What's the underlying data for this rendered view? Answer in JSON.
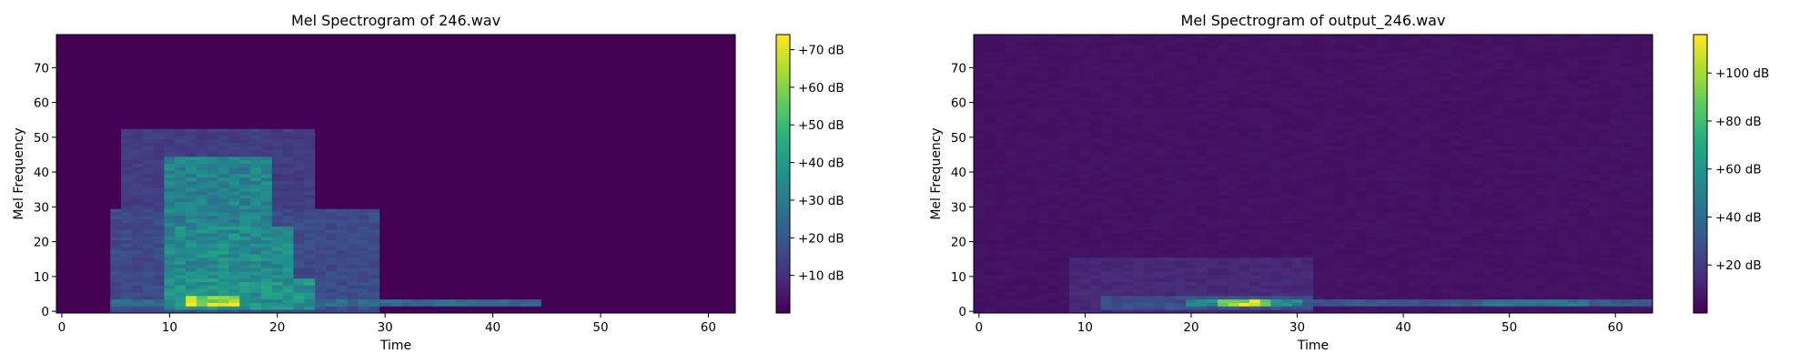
{
  "chart_data": [
    {
      "type": "heatmap",
      "title": "Mel Spectrogram of 246.wav",
      "xlabel": "Time",
      "ylabel": "Mel Frequency",
      "xlim": [
        -0.5,
        62.5
      ],
      "ylim": [
        -0.5,
        79.5
      ],
      "x_ticks": [
        0,
        10,
        20,
        30,
        40,
        50,
        60
      ],
      "y_ticks": [
        0,
        10,
        20,
        30,
        40,
        50,
        60,
        70
      ],
      "n_frames": 63,
      "n_mels": 80,
      "colormap": "viridis",
      "colorbar": {
        "range_db": [
          0,
          74
        ],
        "ticks": [
          10,
          20,
          30,
          40,
          50,
          60,
          70
        ],
        "tick_labels": [
          "+10 dB",
          "+20 dB",
          "+30 dB",
          "+40 dB",
          "+50 dB",
          "+60 dB",
          "+70 dB"
        ]
      },
      "energy_regions": [
        {
          "t": [
            5,
            30
          ],
          "mel": [
            0,
            30
          ],
          "level_db": 18
        },
        {
          "t": [
            6,
            24
          ],
          "mel": [
            8,
            53
          ],
          "level_db": 14
        },
        {
          "t": [
            10,
            20
          ],
          "mel": [
            20,
            45
          ],
          "level_db": 35
        },
        {
          "t": [
            10,
            22
          ],
          "mel": [
            10,
            25
          ],
          "level_db": 38
        },
        {
          "t": [
            10,
            24
          ],
          "mel": [
            1,
            10
          ],
          "level_db": 40
        },
        {
          "t": [
            5,
            45
          ],
          "mel": [
            2,
            4
          ],
          "level_db": 28
        },
        {
          "t": [
            12,
            17
          ],
          "mel": [
            2,
            5
          ],
          "level_db": 72
        }
      ]
    },
    {
      "type": "heatmap",
      "title": "Mel Spectrogram of output_246.wav",
      "xlabel": "Time",
      "ylabel": "Mel Frequency",
      "xlim": [
        -0.5,
        63.5
      ],
      "ylim": [
        -0.5,
        79.5
      ],
      "x_ticks": [
        0,
        10,
        20,
        30,
        40,
        50,
        60
      ],
      "y_ticks": [
        0,
        10,
        20,
        30,
        40,
        50,
        60,
        70
      ],
      "n_frames": 64,
      "n_mels": 80,
      "colormap": "viridis",
      "colorbar": {
        "range_db": [
          0,
          116
        ],
        "ticks": [
          20,
          40,
          60,
          80,
          100
        ],
        "tick_labels": [
          "+20 dB",
          "+40 dB",
          "+60 dB",
          "+80 dB",
          "+100 dB"
        ]
      },
      "energy_regions": [
        {
          "t": [
            0,
            64
          ],
          "mel": [
            0,
            80
          ],
          "level_db": 6
        },
        {
          "t": [
            9,
            32
          ],
          "mel": [
            0,
            16
          ],
          "level_db": 14
        },
        {
          "t": [
            12,
            32
          ],
          "mel": [
            1,
            5
          ],
          "level_db": 30
        },
        {
          "t": [
            20,
            31
          ],
          "mel": [
            2,
            4
          ],
          "level_db": 60
        },
        {
          "t": [
            23,
            28
          ],
          "mel": [
            2,
            4
          ],
          "level_db": 112
        },
        {
          "t": [
            32,
            64
          ],
          "mel": [
            2,
            4
          ],
          "level_db": 34
        },
        {
          "t": [
            48,
            58
          ],
          "mel": [
            2,
            4
          ],
          "level_db": 48
        }
      ]
    }
  ]
}
